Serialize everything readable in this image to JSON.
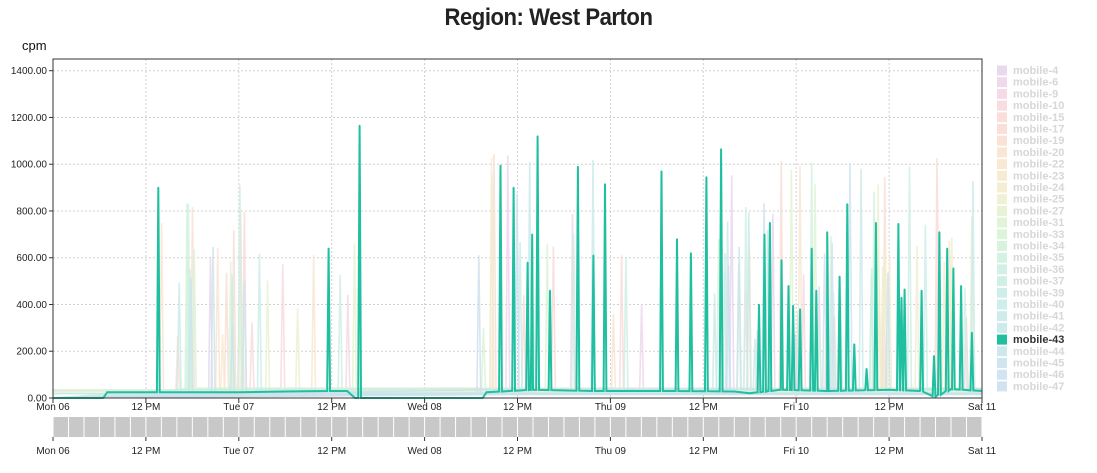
{
  "title": "Region: West Parton",
  "unit": "cpm",
  "chart_data": {
    "type": "line",
    "title": "Region: West Parton",
    "ylabel": "cpm",
    "ylim": [
      0,
      1450
    ],
    "y_ticks": [
      "0.00",
      "200.00",
      "400.00",
      "600.00",
      "800.00",
      "1000.00",
      "1200.00",
      "1400.00"
    ],
    "x_ticks": [
      "Mon 06",
      "12 PM",
      "Tue 07",
      "12 PM",
      "Wed 08",
      "12 PM",
      "Thu 09",
      "12 PM",
      "Fri 10",
      "12 PM",
      "Sat 11"
    ],
    "x_range_hours": [
      0,
      120
    ],
    "grid": true,
    "legend_position": "right",
    "legend": [
      "mobile-4",
      "mobile-6",
      "mobile-9",
      "mobile-10",
      "mobile-15",
      "mobile-17",
      "mobile-19",
      "mobile-20",
      "mobile-22",
      "mobile-23",
      "mobile-24",
      "mobile-25",
      "mobile-27",
      "mobile-31",
      "mobile-33",
      "mobile-34",
      "mobile-35",
      "mobile-36",
      "mobile-37",
      "mobile-39",
      "mobile-40",
      "mobile-41",
      "mobile-42",
      "mobile-43",
      "mobile-44",
      "mobile-45",
      "mobile-46",
      "mobile-47"
    ],
    "highlighted_series": "mobile-43",
    "colors": {
      "highlight": "#1fbfa0",
      "faded": [
        "#e8d4ec",
        "#eed5ea",
        "#f3d7e2",
        "#f7d8dc",
        "#f9dad8",
        "#f9dcd4",
        "#fadfd2",
        "#f9e3d0",
        "#f8e6cf",
        "#f6e9ce",
        "#f3ecce",
        "#eeefcf",
        "#e7f1d0",
        "#dff3d3",
        "#d8f3d6",
        "#d3f2da",
        "#cff1de",
        "#cdefe1",
        "#cbeee4",
        "#c9ede6",
        "#c8ece8",
        "#c8eae9",
        "#c8e8ea",
        "#1fbfa0",
        "#c9e5ec",
        "#cae3ee",
        "#cbe1ef",
        "#cddff0"
      ]
    },
    "series": [
      {
        "name": "mobile-43",
        "baseline": [
          [
            0,
            0
          ],
          [
            6.5,
            0
          ],
          [
            7,
            25
          ],
          [
            14,
            25
          ],
          [
            24,
            25
          ],
          [
            30,
            28
          ],
          [
            36,
            30
          ],
          [
            38,
            30
          ],
          [
            39,
            0
          ],
          [
            55.5,
            0
          ],
          [
            56,
            25
          ],
          [
            62,
            35
          ],
          [
            70,
            30
          ],
          [
            80,
            30
          ],
          [
            88,
            28
          ],
          [
            90,
            20
          ],
          [
            94,
            35
          ],
          [
            100,
            30
          ],
          [
            108,
            35
          ],
          [
            112,
            30
          ],
          [
            114,
            5
          ],
          [
            116,
            38
          ],
          [
            120,
            30
          ]
        ],
        "peaks": [
          [
            13.6,
            900
          ],
          [
            35.6,
            640
          ],
          [
            39.6,
            1165
          ],
          [
            57.8,
            995
          ],
          [
            59.5,
            900
          ],
          [
            61.3,
            580
          ],
          [
            61.9,
            700
          ],
          [
            62.6,
            1120
          ],
          [
            64.2,
            460
          ],
          [
            67.8,
            990
          ],
          [
            69.8,
            610
          ],
          [
            71.3,
            915
          ],
          [
            78.6,
            970
          ],
          [
            80.6,
            680
          ],
          [
            82.4,
            620
          ],
          [
            84.4,
            945
          ],
          [
            86.3,
            1065
          ],
          [
            91.2,
            400
          ],
          [
            91.9,
            700
          ],
          [
            92.6,
            750
          ],
          [
            94.1,
            590
          ],
          [
            95.0,
            480
          ],
          [
            95.6,
            395
          ],
          [
            96.5,
            380
          ],
          [
            98.0,
            640
          ],
          [
            98.6,
            460
          ],
          [
            100.0,
            710
          ],
          [
            101.6,
            520
          ],
          [
            102.6,
            830
          ],
          [
            103.5,
            230
          ],
          [
            105.1,
            125
          ],
          [
            106.3,
            750
          ],
          [
            109.2,
            745
          ],
          [
            109.6,
            430
          ],
          [
            110.0,
            465
          ],
          [
            112.2,
            460
          ],
          [
            113.8,
            180
          ],
          [
            114.5,
            710
          ],
          [
            115.5,
            640
          ],
          [
            116.3,
            555
          ],
          [
            117.3,
            480
          ],
          [
            118.7,
            280
          ]
        ]
      }
    ]
  }
}
